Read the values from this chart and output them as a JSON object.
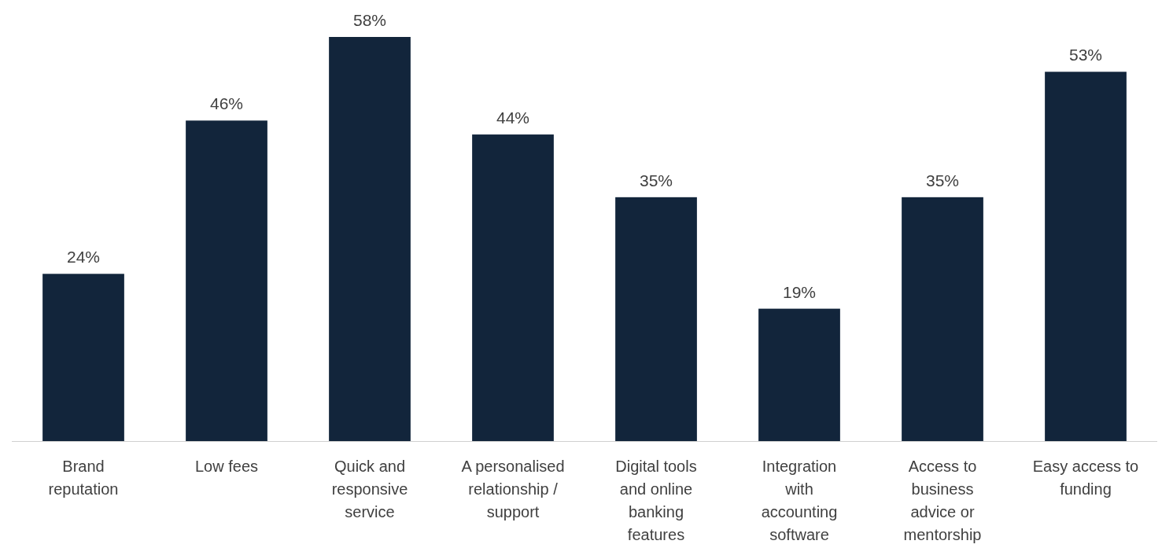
{
  "chart_data": {
    "type": "bar",
    "categories": [
      "Brand reputation",
      "Low fees",
      "Quick and responsive service",
      "A personalised relationship / support",
      "Digital tools and online banking features",
      "Integration with accounting software",
      "Access to business advice or mentorship",
      "Easy access to funding"
    ],
    "values": [
      24,
      46,
      58,
      44,
      35,
      19,
      35,
      53
    ],
    "value_labels": [
      "24%",
      "46%",
      "58%",
      "44%",
      "35%",
      "19%",
      "35%",
      "53%"
    ],
    "color": "#12253b"
  }
}
